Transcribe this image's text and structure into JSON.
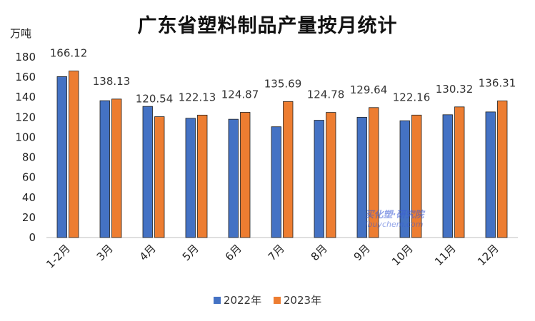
{
  "title": "广东省塑料制品产量按月统计",
  "unit_label": "万吨",
  "watermark": {
    "cn": "买化塑·研究院",
    "en": "ibuychem.com"
  },
  "colors": {
    "series_2022": "#4472C4",
    "series_2023": "#ED7D31",
    "bar_edge": "#1F1F1F"
  },
  "chart_data": {
    "type": "bar",
    "title": "广东省塑料制品产量按月统计",
    "ylabel": "万吨",
    "xlabel": "",
    "ylim": [
      0,
      180
    ],
    "yticks": [
      0,
      20,
      40,
      60,
      80,
      100,
      120,
      140,
      160,
      180
    ],
    "categories": [
      "1-2月",
      "3月",
      "4月",
      "5月",
      "6月",
      "7月",
      "8月",
      "9月",
      "10月",
      "11月",
      "12月"
    ],
    "series": [
      {
        "name": "2022年",
        "values": [
          160.5,
          136.5,
          130.8,
          119.0,
          118.0,
          110.5,
          117.0,
          120.0,
          116.5,
          122.5,
          125.3
        ]
      },
      {
        "name": "2023年",
        "values": [
          166.12,
          138.13,
          120.54,
          122.13,
          124.87,
          135.69,
          124.78,
          129.64,
          122.16,
          130.32,
          136.31
        ]
      }
    ],
    "data_labels": [
      "166.12",
      "138.13",
      "120.54",
      "122.13",
      "124.87",
      "135.69",
      "124.78",
      "129.64",
      "122.16",
      "130.32",
      "136.31"
    ],
    "legend_position": "bottom",
    "grid": false
  }
}
